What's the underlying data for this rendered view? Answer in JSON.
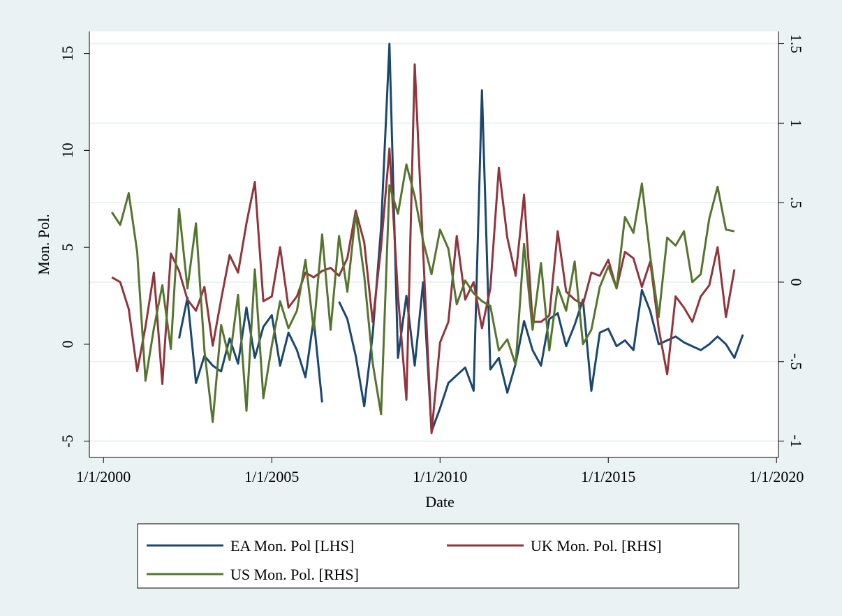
{
  "chart_data": {
    "type": "line",
    "x_label": "Date",
    "y_label": "Mon. Pol.",
    "x": [
      "2000-04-01",
      "2000-07-01",
      "2000-10-01",
      "2001-01-01",
      "2001-04-01",
      "2001-07-01",
      "2001-10-01",
      "2002-01-01",
      "2002-04-01",
      "2002-07-01",
      "2002-10-01",
      "2003-01-01",
      "2003-04-01",
      "2003-07-01",
      "2003-10-01",
      "2004-01-01",
      "2004-04-01",
      "2004-07-01",
      "2004-10-01",
      "2005-01-01",
      "2005-04-01",
      "2005-07-01",
      "2005-10-01",
      "2006-01-01",
      "2006-04-01",
      "2006-07-01",
      "2006-10-01",
      "2007-01-01",
      "2007-04-01",
      "2007-07-01",
      "2007-10-01",
      "2008-01-01",
      "2008-04-01",
      "2008-07-01",
      "2008-10-01",
      "2009-01-01",
      "2009-04-01",
      "2009-07-01",
      "2009-10-01",
      "2010-01-01",
      "2010-04-01",
      "2010-07-01",
      "2010-10-01",
      "2011-01-01",
      "2011-04-01",
      "2011-07-01",
      "2011-10-01",
      "2012-01-01",
      "2012-04-01",
      "2012-07-01",
      "2012-10-01",
      "2013-01-01",
      "2013-04-01",
      "2013-07-01",
      "2013-10-01",
      "2014-01-01",
      "2014-04-01",
      "2014-07-01",
      "2014-10-01",
      "2015-01-01",
      "2015-04-01",
      "2015-07-01",
      "2015-10-01",
      "2016-01-01",
      "2016-04-01",
      "2016-07-01",
      "2016-10-01",
      "2017-01-01",
      "2017-04-01",
      "2017-07-01",
      "2017-10-01",
      "2018-01-01",
      "2018-04-01",
      "2018-07-01",
      "2018-10-01",
      "2019-01-01"
    ],
    "xlim": [
      "1999-08-01",
      "2020-01-22"
    ],
    "xticks": [
      {
        "value": "2000-01-01",
        "label": "1/1/2000"
      },
      {
        "value": "2005-01-01",
        "label": "1/1/2005"
      },
      {
        "value": "2010-01-01",
        "label": "1/1/2010"
      },
      {
        "value": "2015-01-01",
        "label": "1/1/2015"
      },
      {
        "value": "2020-01-01",
        "label": "1/1/2020"
      }
    ],
    "ylim": [
      -5.84,
      16.14
    ],
    "yticks": [
      -5,
      0,
      5,
      10,
      15
    ],
    "y2lim": [
      -1.103,
      1.577
    ],
    "y2ticks": [
      -1,
      {
        "value": -0.5,
        "label": "-.5"
      },
      0,
      {
        "value": 0.5,
        "label": ".5"
      },
      1,
      1.5
    ],
    "grid": true,
    "series": [
      {
        "name": "EA Mon. Pol [LHS]",
        "color": "#1a476f",
        "values": [
          null,
          null,
          null,
          null,
          null,
          null,
          null,
          null,
          0.3,
          2.4,
          -2.0,
          -0.6,
          -1.1,
          -1.4,
          0.3,
          -1.0,
          1.9,
          -0.7,
          0.9,
          1.5,
          -1.1,
          0.6,
          -0.3,
          -1.7,
          1.3,
          -3.0,
          null,
          2.2,
          1.3,
          -0.6,
          -3.2,
          0.5,
          6.0,
          15.5,
          -0.7,
          2.5,
          -1.1,
          3.2,
          -4.5,
          -3.3,
          -2.0,
          -1.6,
          -1.2,
          -2.4,
          13.1,
          -1.3,
          -0.7,
          -2.5,
          -1.0,
          1.2,
          -0.3,
          -1.1,
          1.3,
          1.6,
          -0.1,
          1.0,
          2.3,
          -2.4,
          0.6,
          0.8,
          -0.1,
          0.2,
          -0.3,
          2.8,
          1.7,
          0.0,
          0.2,
          0.4,
          0.1,
          -0.1,
          -0.3,
          0.0,
          0.4,
          0.0,
          -0.7,
          0.5
        ]
      },
      {
        "name": "UK Mon. Pol. [RHS]",
        "color": "#90353b",
        "axis": "y2",
        "values": [
          0.03,
          0,
          -0.17,
          -0.56,
          -0.28,
          0.06,
          -0.64,
          0.18,
          0.07,
          -0.11,
          -0.18,
          -0.03,
          -0.4,
          -0.11,
          0.17,
          0.06,
          0.37,
          0.63,
          -0.12,
          -0.09,
          0.22,
          -0.16,
          -0.09,
          0.06,
          0.03,
          0.07,
          0.09,
          0.04,
          0.15,
          0.45,
          0.25,
          -0.25,
          0.22,
          0.84,
          -0.08,
          -0.74,
          1.37,
          0.2,
          -0.95,
          -0.38,
          -0.25,
          0.29,
          -0.11,
          0,
          -0.29,
          -0.04,
          0.72,
          0.28,
          0.04,
          0.55,
          -0.25,
          -0.25,
          -0.21,
          0.32,
          -0.06,
          -0.11,
          -0.14,
          0.06,
          0.04,
          0.14,
          -0.04,
          0.19,
          0.15,
          -0.03,
          0.13,
          -0.29,
          -0.58,
          -0.09,
          -0.16,
          -0.25,
          -0.09,
          -0.02,
          0.22,
          -0.22,
          0.08,
          null
        ]
      },
      {
        "name": "US Mon. Pol. [RHS]",
        "color": "#55752f",
        "axis": "y2",
        "values": [
          0.44,
          0.36,
          0.56,
          0.19,
          -0.62,
          -0.29,
          -0.02,
          -0.42,
          0.46,
          -0.04,
          0.37,
          -0.43,
          -0.88,
          -0.27,
          -0.49,
          -0.08,
          -0.81,
          0.08,
          -0.73,
          -0.4,
          -0.12,
          -0.29,
          -0.18,
          0.14,
          -0.3,
          0.3,
          -0.3,
          0.29,
          -0.06,
          0.43,
          0.04,
          -0.51,
          -0.83,
          0.61,
          0.43,
          0.74,
          0.54,
          0.26,
          0.05,
          0.33,
          0.21,
          -0.14,
          0.01,
          -0.07,
          -0.12,
          -0.15,
          -0.43,
          -0.36,
          -0.52,
          0.24,
          -0.3,
          0.12,
          -0.43,
          -0.03,
          -0.18,
          0.13,
          -0.39,
          -0.3,
          -0.03,
          0.1,
          -0.04,
          0.41,
          0.31,
          0.62,
          0.16,
          -0.22,
          0.28,
          0.23,
          0.32,
          0,
          0.05,
          0.4,
          0.6,
          0.33,
          0.32,
          null
        ]
      }
    ]
  }
}
